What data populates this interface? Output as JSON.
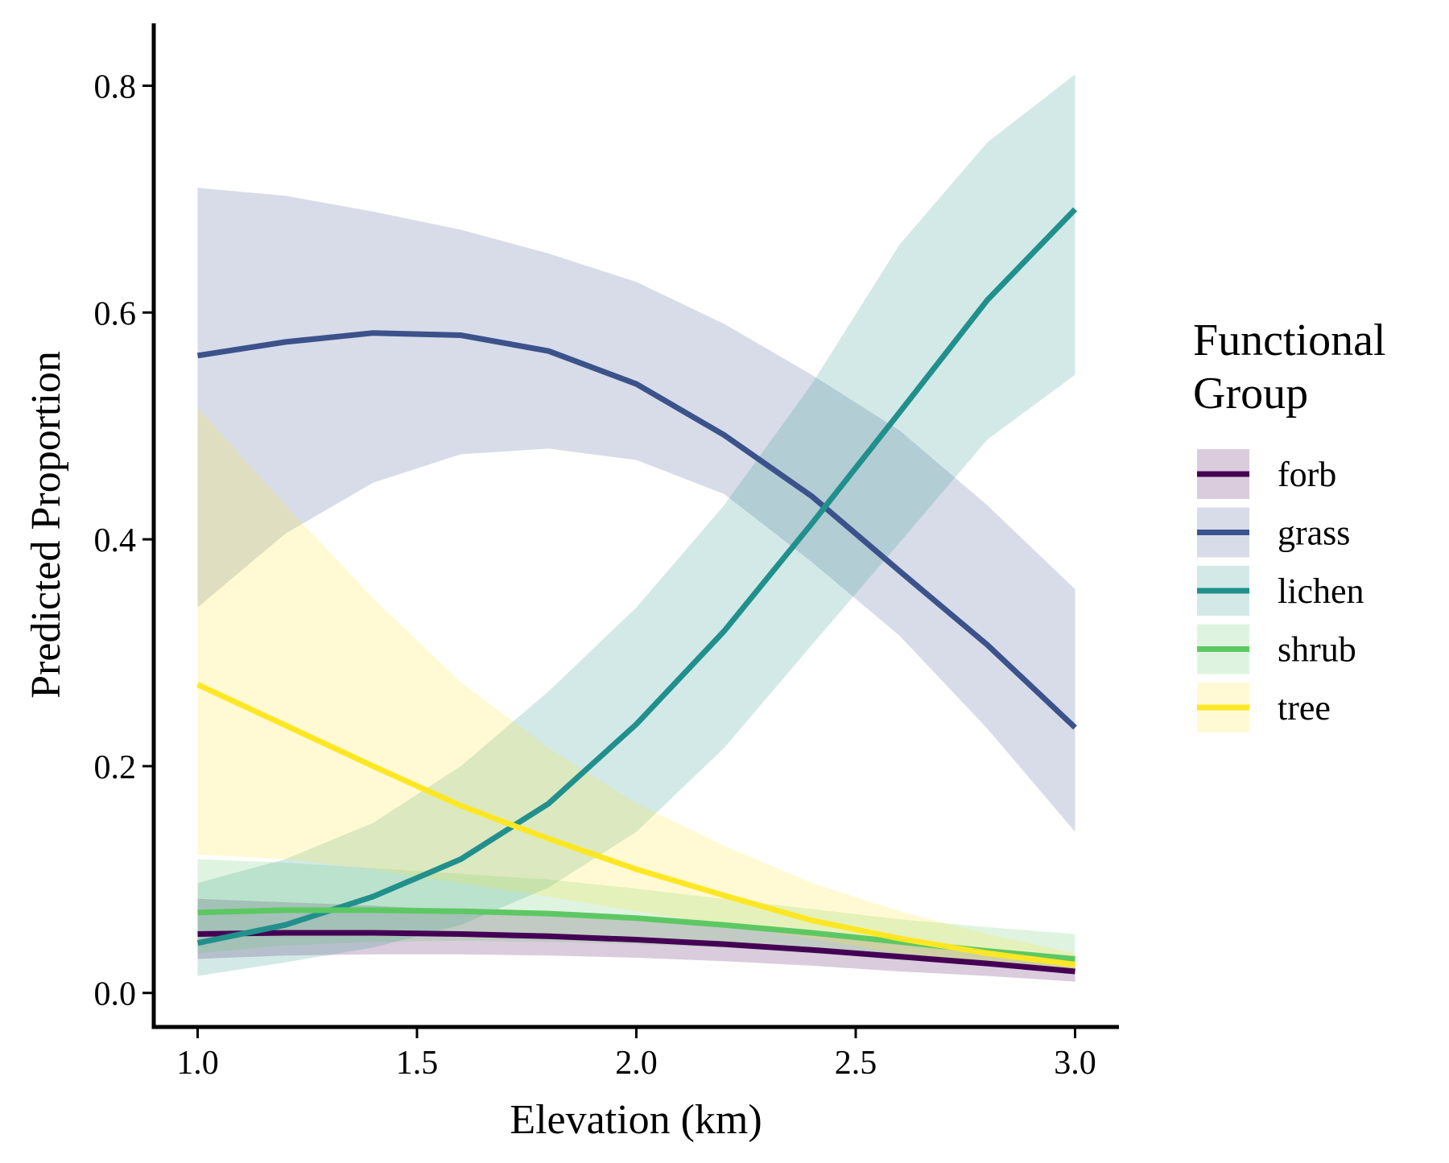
{
  "chart_data": {
    "type": "line_ribbon",
    "x_label": "Elevation (km)",
    "y_label": "Predicted Proportion",
    "legend_title": "Functional Group",
    "x": [
      1.0,
      1.2,
      1.4,
      1.6,
      1.8,
      2.0,
      2.2,
      2.4,
      2.6,
      2.8,
      3.0
    ],
    "xlim": [
      0.9,
      3.1
    ],
    "xticks": [
      {
        "value": 1.0,
        "label": "1.0"
      },
      {
        "value": 1.5,
        "label": "1.5"
      },
      {
        "value": 2.0,
        "label": "2.0"
      },
      {
        "value": 2.5,
        "label": "2.5"
      },
      {
        "value": 3.0,
        "label": "3.0"
      }
    ],
    "ylim": [
      -0.03,
      0.855
    ],
    "yticks": [
      {
        "value": 0,
        "label": "0.0"
      },
      0.2,
      0.4,
      0.6,
      0.8
    ],
    "band_opacity": 0.2,
    "legend_position": "right",
    "series": [
      {
        "name": "forb",
        "color": "#440154",
        "values": [
          0.052,
          0.053,
          0.053,
          0.052,
          0.05,
          0.047,
          0.043,
          0.038,
          0.032,
          0.026,
          0.019
        ],
        "lower": [
          0.03,
          0.033,
          0.034,
          0.034,
          0.033,
          0.031,
          0.028,
          0.024,
          0.019,
          0.015,
          0.01
        ],
        "upper": [
          0.083,
          0.08,
          0.077,
          0.073,
          0.069,
          0.064,
          0.058,
          0.052,
          0.045,
          0.037,
          0.03
        ]
      },
      {
        "name": "grass",
        "color": "#3b528b",
        "values": [
          0.562,
          0.574,
          0.582,
          0.58,
          0.566,
          0.537,
          0.492,
          0.438,
          0.372,
          0.307,
          0.234
        ],
        "lower": [
          0.34,
          0.405,
          0.45,
          0.475,
          0.48,
          0.47,
          0.44,
          0.38,
          0.315,
          0.233,
          0.142
        ],
        "upper": [
          0.71,
          0.703,
          0.689,
          0.673,
          0.652,
          0.627,
          0.59,
          0.545,
          0.496,
          0.43,
          0.356
        ]
      },
      {
        "name": "lichen",
        "color": "#21908c",
        "values": [
          0.044,
          0.06,
          0.085,
          0.118,
          0.167,
          0.237,
          0.319,
          0.414,
          0.512,
          0.611,
          0.691
        ],
        "lower": [
          0.015,
          0.027,
          0.04,
          0.06,
          0.093,
          0.142,
          0.216,
          0.307,
          0.397,
          0.488,
          0.545
        ],
        "upper": [
          0.097,
          0.118,
          0.15,
          0.2,
          0.266,
          0.34,
          0.43,
          0.537,
          0.66,
          0.75,
          0.81
        ]
      },
      {
        "name": "shrub",
        "color": "#5dc863",
        "values": [
          0.071,
          0.073,
          0.073,
          0.072,
          0.07,
          0.066,
          0.06,
          0.053,
          0.045,
          0.037,
          0.03
        ],
        "lower": [
          0.035,
          0.042,
          0.045,
          0.046,
          0.045,
          0.043,
          0.04,
          0.035,
          0.03,
          0.025,
          0.02
        ],
        "upper": [
          0.118,
          0.115,
          0.11,
          0.105,
          0.1,
          0.092,
          0.083,
          0.074,
          0.065,
          0.058,
          0.052
        ]
      },
      {
        "name": "tree",
        "color": "#fde725",
        "values": [
          0.272,
          0.236,
          0.2,
          0.165,
          0.136,
          0.109,
          0.086,
          0.064,
          0.048,
          0.035,
          0.025
        ],
        "lower": [
          0.122,
          0.118,
          0.109,
          0.097,
          0.085,
          0.072,
          0.06,
          0.048,
          0.035,
          0.025,
          0.017
        ],
        "upper": [
          0.516,
          0.43,
          0.348,
          0.274,
          0.216,
          0.167,
          0.13,
          0.097,
          0.072,
          0.052,
          0.035
        ]
      }
    ]
  }
}
